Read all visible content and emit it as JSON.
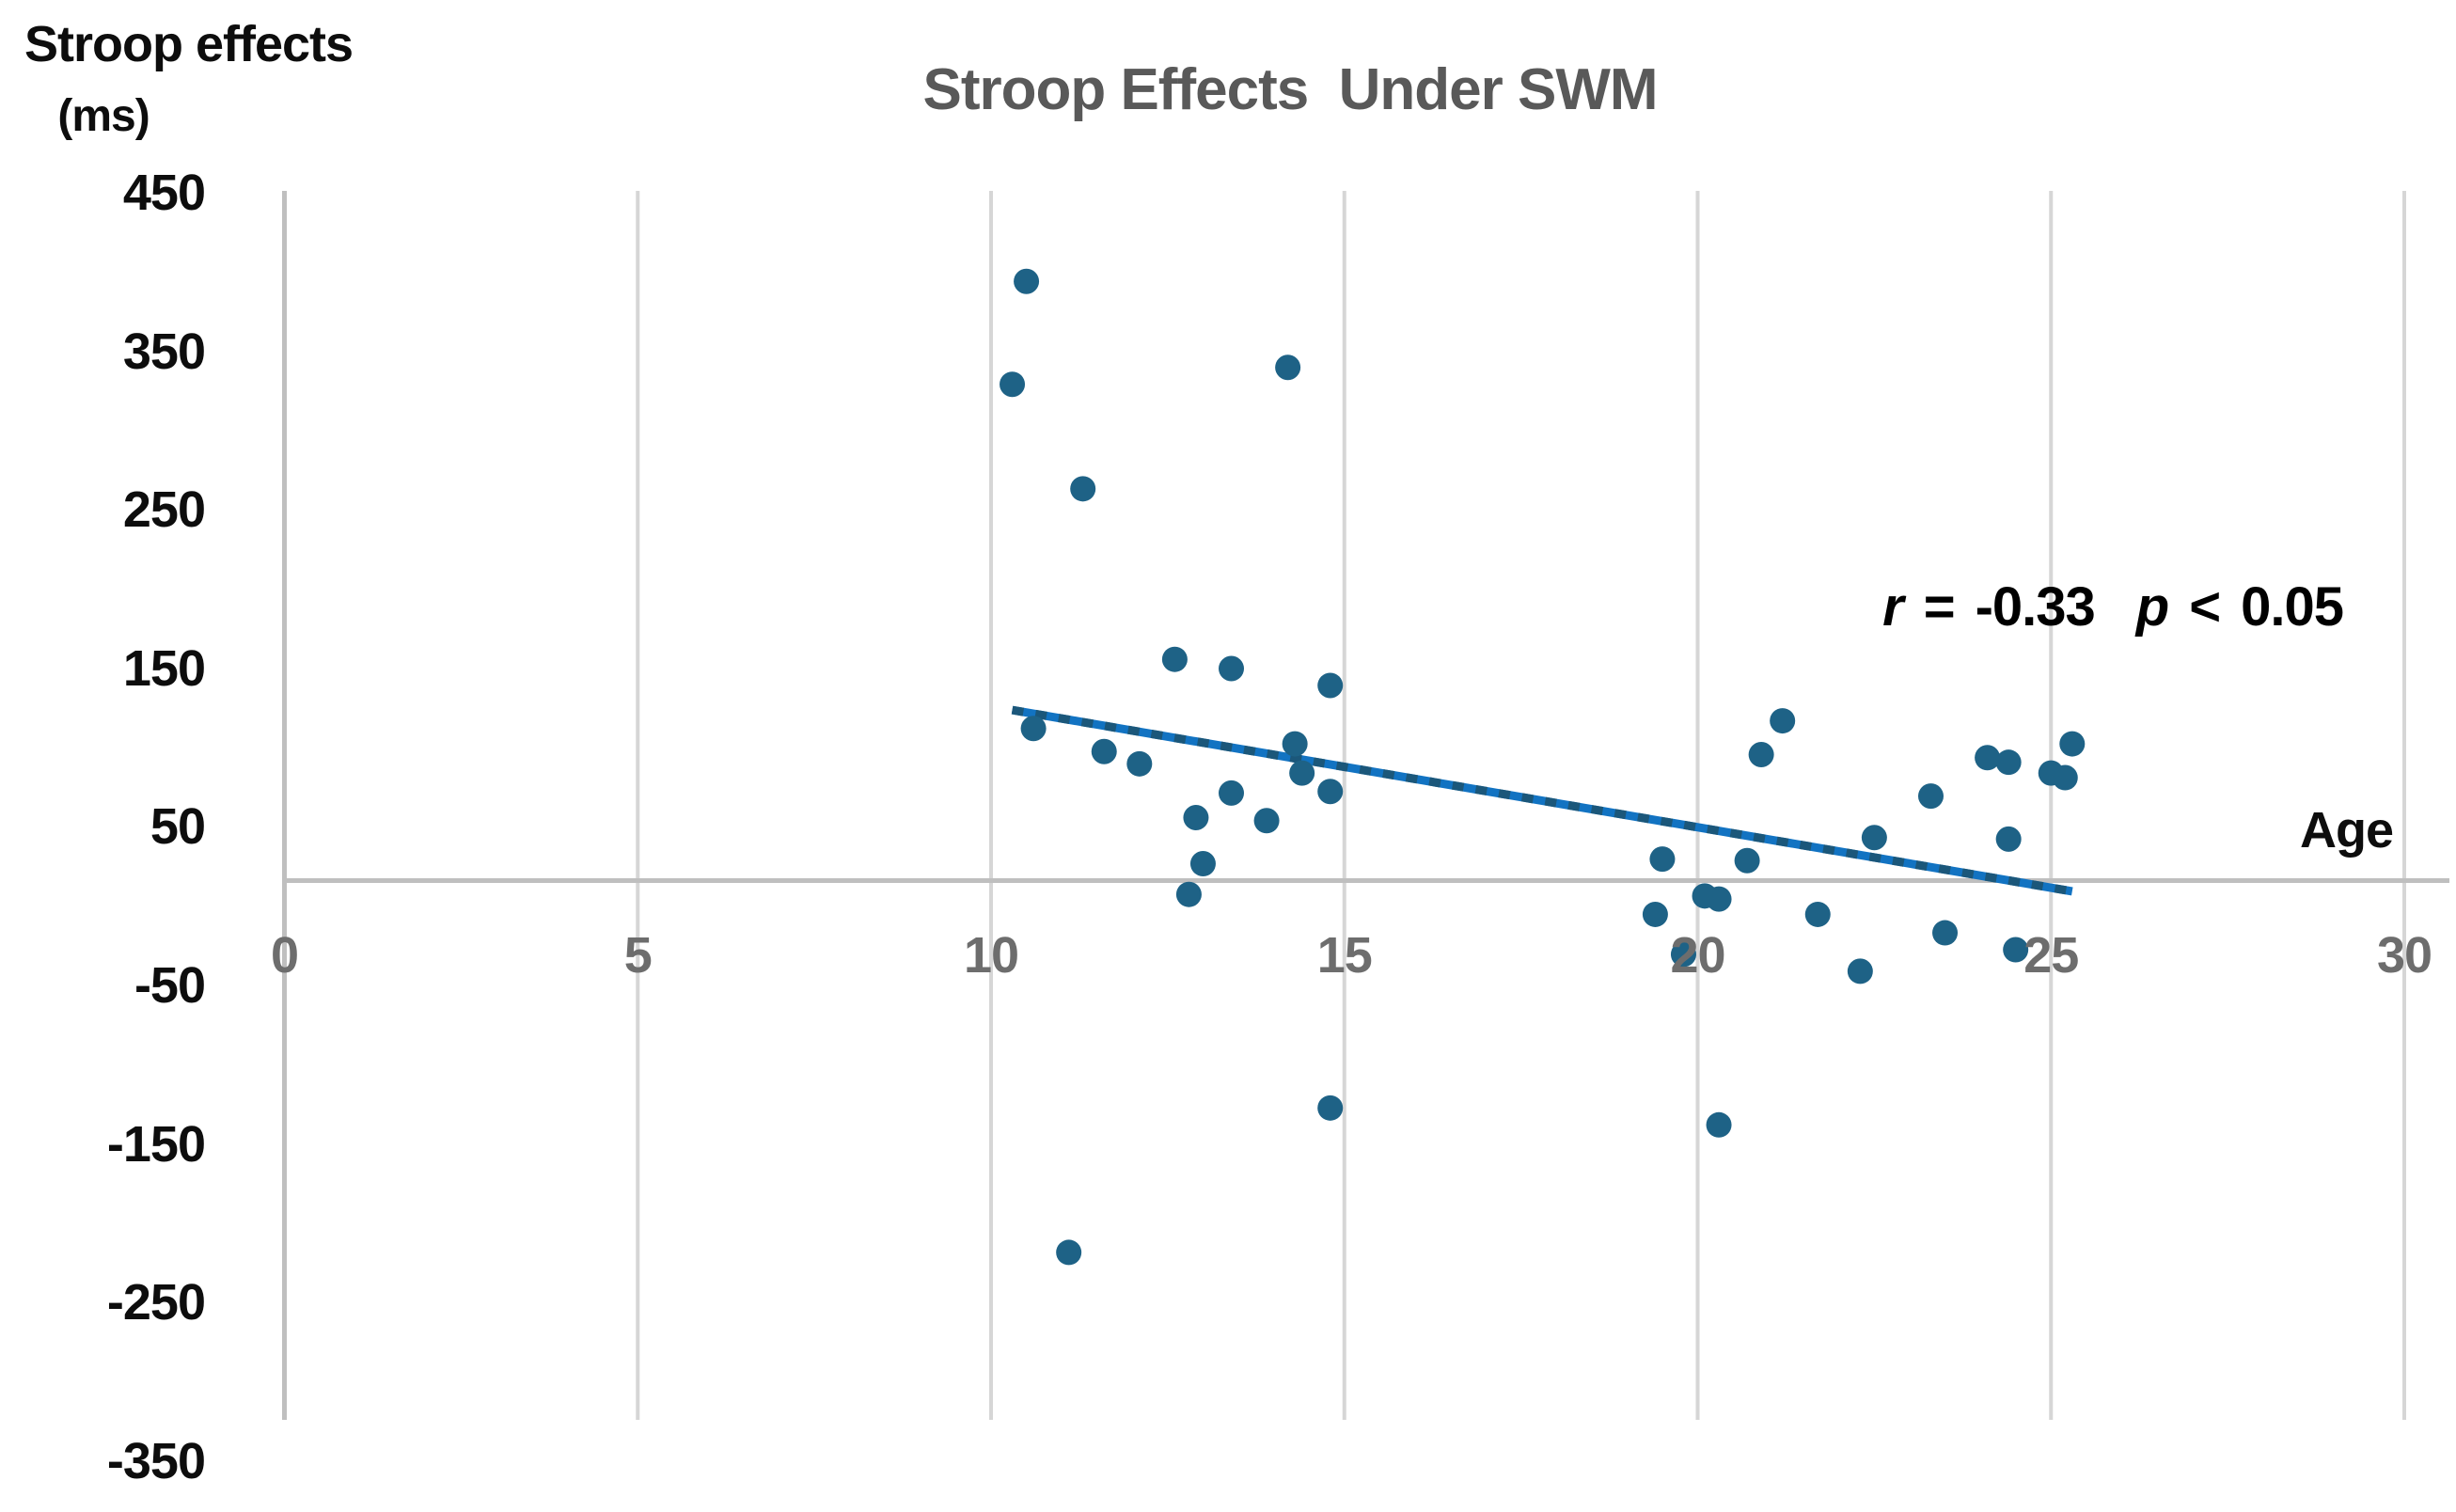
{
  "title": "Stroop Effects  Under SWM",
  "y_axis_title": {
    "line1": "Stroop effects",
    "line2": "(ms)"
  },
  "x_axis_label": "Age",
  "annotation": {
    "r_var": "r",
    "r_eq": "=",
    "r_val": "-0.33",
    "p_var": "p",
    "p_lt": "<",
    "p_val": "0.05",
    "full_text": "r = -0.33 p < 0.05"
  },
  "colors": {
    "point": "#1e6286",
    "trend_base": "#1273c2",
    "trend_dash": "#1b577a",
    "gridline": "#d6d6d6",
    "axis_line": "#bfbfbf",
    "x_tick_text": "#6d6d6d",
    "title_text": "#595959"
  },
  "chart_data": {
    "type": "scatter",
    "title": "Stroop Effects  Under SWM",
    "xlabel": "Age",
    "ylabel": "Stroop effects (ms)",
    "xlim": [
      0,
      30
    ],
    "ylim": [
      -350,
      450
    ],
    "x_ticks": [
      0,
      5,
      10,
      15,
      20,
      25,
      30
    ],
    "y_ticks": [
      450,
      350,
      250,
      150,
      50,
      -50,
      -150,
      -250,
      -350
    ],
    "grid": "vertical-gridlines-and-zero-line",
    "legend": "none",
    "points": [
      [
        10.3,
        323
      ],
      [
        10.5,
        390
      ],
      [
        10.6,
        99
      ],
      [
        11.1,
        -242
      ],
      [
        11.3,
        255
      ],
      [
        11.6,
        84
      ],
      [
        12.1,
        76
      ],
      [
        12.6,
        144
      ],
      [
        12.8,
        -9
      ],
      [
        12.9,
        41
      ],
      [
        13.0,
        11
      ],
      [
        13.4,
        138
      ],
      [
        13.4,
        57
      ],
      [
        13.9,
        39
      ],
      [
        14.2,
        334
      ],
      [
        14.3,
        89
      ],
      [
        14.4,
        70
      ],
      [
        14.8,
        127
      ],
      [
        14.8,
        58
      ],
      [
        14.8,
        -148
      ],
      [
        19.4,
        -22
      ],
      [
        19.5,
        14
      ],
      [
        19.8,
        -48
      ],
      [
        20.1,
        -10
      ],
      [
        20.3,
        -12
      ],
      [
        20.3,
        -159
      ],
      [
        20.7,
        13
      ],
      [
        20.9,
        82
      ],
      [
        21.2,
        104
      ],
      [
        21.7,
        -22
      ],
      [
        22.3,
        -59
      ],
      [
        22.5,
        28
      ],
      [
        23.3,
        55
      ],
      [
        23.5,
        -34
      ],
      [
        24.1,
        80
      ],
      [
        24.4,
        77
      ],
      [
        24.4,
        27
      ],
      [
        24.5,
        -45
      ],
      [
        25.0,
        70
      ],
      [
        25.2,
        67
      ],
      [
        25.3,
        89
      ]
    ],
    "trendline": {
      "x1": 10.3,
      "y1": 111,
      "x2": 25.3,
      "y2": -7,
      "style": "dashed"
    },
    "correlation": {
      "r": -0.33,
      "p": "< 0.05"
    }
  }
}
